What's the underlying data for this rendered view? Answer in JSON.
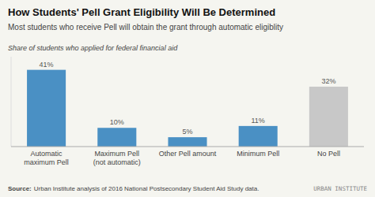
{
  "chart_data": {
    "type": "bar",
    "title": "How Students' Pell Grant Eligibility Will Be Determined",
    "subtitle": "Most students who receive Pell will obtain the grant through automatic eligiblity",
    "y_label": "Share of students who applied for federal financial aid",
    "categories": [
      "Automatic\nmaximum Pell",
      "Maximum Pell\n(not automatic)",
      "Other Pell amount",
      "Minimum Pell",
      "No Pell"
    ],
    "values": [
      41,
      10,
      5,
      11,
      32
    ],
    "value_labels": [
      "41%",
      "10%",
      "5%",
      "11%",
      "32%"
    ],
    "colors": [
      "#4a90c4",
      "#4a90c4",
      "#4a90c4",
      "#4a90c4",
      "#c8c8c8"
    ],
    "ylim": [
      0,
      48
    ],
    "data_labels": true,
    "tick_labels": "x",
    "grid": false,
    "source_label": "Source:",
    "source": "Urban Institute analysis of 2016 National Postsecondary Student Aid Study data.",
    "watermark": "URBAN INSTITUTE"
  }
}
